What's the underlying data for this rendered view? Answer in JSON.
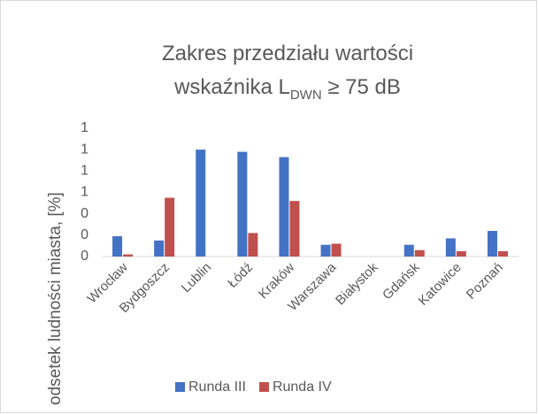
{
  "chart_data": {
    "type": "bar",
    "title": {
      "line1": "Zakres przedziału wartości",
      "line2_start": "wskaźnika L",
      "line2_sub": "DWN",
      "line2_end": " ≥ 75 dB"
    },
    "ylabel": "odsetek ludności miasta, [%]",
    "categories": [
      "Wrocław",
      "Bydgoszcz",
      "Lublin",
      "Łódź",
      "Kraków",
      "Warszawa",
      "Białystok",
      "Gdańsk",
      "Katowice",
      "Poznań"
    ],
    "series": [
      {
        "name": "Runda III",
        "color": "#4472c4",
        "values": [
          0.19,
          0.15,
          1.0,
          0.98,
          0.93,
          0.11,
          0,
          0.11,
          0.17,
          0.24
        ]
      },
      {
        "name": "Runda IV",
        "color": "#c0504d",
        "values": [
          0.02,
          0.55,
          0,
          0.22,
          0.52,
          0.12,
          0,
          0.06,
          0.05,
          0.05
        ]
      }
    ],
    "ylim": [
      0,
      1.2
    ],
    "yticks": [
      0,
      {
        "value": 0.2,
        "label": "0"
      },
      {
        "value": 0.4,
        "label": "0"
      },
      {
        "value": 0.6,
        "label": "1"
      },
      {
        "value": 0.8,
        "label": "1"
      },
      1,
      {
        "value": 1.2,
        "label": "1"
      }
    ],
    "grid": false,
    "legend": "bottom"
  }
}
